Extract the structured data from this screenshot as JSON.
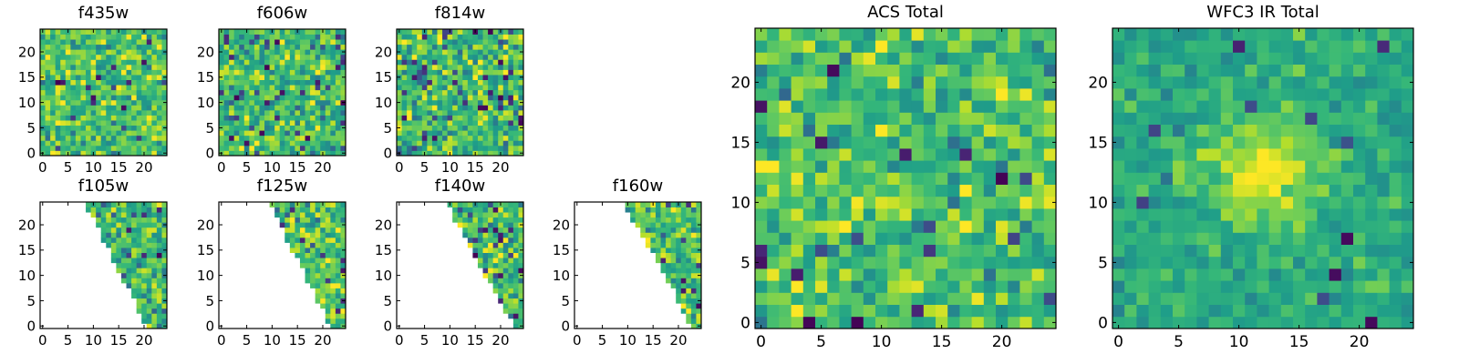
{
  "chart_data": {
    "type": "heatmap",
    "colormap": "viridis",
    "grid_size": [
      25,
      25
    ],
    "xlim": [
      -0.5,
      24.5
    ],
    "ylim": [
      -0.5,
      24.5
    ],
    "origin": "lower",
    "panels": [
      {
        "id": "f435w",
        "title": "f435w",
        "size": "small",
        "xticks": [
          "0",
          "5",
          "10",
          "15",
          "20"
        ],
        "yticks": [
          "0",
          "5",
          "10",
          "15",
          "20"
        ],
        "yticks_values": [
          0,
          5,
          10,
          15,
          20
        ],
        "xticks_values": [
          0,
          5,
          10,
          15,
          20
        ],
        "seed": 11,
        "coverage": "full",
        "mean": 0.72,
        "spread": 0.14,
        "dark_fraction": 0.03
      },
      {
        "id": "f606w",
        "title": "f606w",
        "size": "small",
        "xticks": [
          "0",
          "5",
          "10",
          "15",
          "20"
        ],
        "yticks": [
          "0",
          "5",
          "10",
          "15",
          "20"
        ],
        "yticks_values": [
          0,
          5,
          10,
          15,
          20
        ],
        "xticks_values": [
          0,
          5,
          10,
          15,
          20
        ],
        "seed": 23,
        "coverage": "full",
        "mean": 0.68,
        "spread": 0.15,
        "dark_fraction": 0.04
      },
      {
        "id": "f814w",
        "title": "f814w",
        "size": "small",
        "xticks": [
          "0",
          "5",
          "10",
          "15",
          "20"
        ],
        "yticks": [
          "0",
          "5",
          "10",
          "15",
          "20"
        ],
        "yticks_values": [
          0,
          5,
          10,
          15,
          20
        ],
        "xticks_values": [
          0,
          5,
          10,
          15,
          20
        ],
        "seed": 37,
        "coverage": "full",
        "mean": 0.68,
        "spread": 0.16,
        "dark_fraction": 0.05
      },
      {
        "id": "f105w",
        "title": "f105w",
        "size": "small",
        "xticks": [
          "0",
          "5",
          "10",
          "15",
          "20"
        ],
        "yticks": [
          "0",
          "5",
          "10",
          "15",
          "20"
        ],
        "yticks_values": [
          0,
          5,
          10,
          15,
          20
        ],
        "xticks_values": [
          0,
          5,
          10,
          15,
          20
        ],
        "seed": 41,
        "coverage": "triangle",
        "edge_top_col": 9,
        "edge_bottom_col": 21,
        "mean": 0.66,
        "spread": 0.15,
        "dark_fraction": 0.04
      },
      {
        "id": "f125w",
        "title": "f125w",
        "size": "small",
        "xticks": [
          "0",
          "5",
          "10",
          "15",
          "20"
        ],
        "yticks": [
          "0",
          "5",
          "10",
          "15",
          "20"
        ],
        "yticks_values": [
          0,
          5,
          10,
          15,
          20
        ],
        "xticks_values": [
          0,
          5,
          10,
          15,
          20
        ],
        "seed": 53,
        "coverage": "triangle",
        "edge_top_col": 10,
        "edge_bottom_col": 22,
        "mean": 0.72,
        "spread": 0.15,
        "dark_fraction": 0.04
      },
      {
        "id": "f140w",
        "title": "f140w",
        "size": "small",
        "xticks": [
          "0",
          "5",
          "10",
          "15",
          "20"
        ],
        "yticks": [
          "0",
          "5",
          "10",
          "15",
          "20"
        ],
        "yticks_values": [
          0,
          5,
          10,
          15,
          20
        ],
        "xticks_values": [
          0,
          5,
          10,
          15,
          20
        ],
        "seed": 67,
        "coverage": "triangle",
        "edge_top_col": 10,
        "edge_bottom_col": 23,
        "mean": 0.7,
        "spread": 0.16,
        "dark_fraction": 0.06
      },
      {
        "id": "f160w",
        "title": "f160w",
        "size": "small",
        "xticks": [
          "0",
          "5",
          "10",
          "15",
          "20"
        ],
        "yticks": [
          "0",
          "5",
          "10",
          "15",
          "20"
        ],
        "yticks_values": [
          0,
          5,
          10,
          15,
          20
        ],
        "xticks_values": [
          0,
          5,
          10,
          15,
          20
        ],
        "seed": 71,
        "coverage": "triangle",
        "edge_top_col": 10,
        "edge_bottom_col": 23,
        "mean": 0.7,
        "spread": 0.15,
        "dark_fraction": 0.05
      },
      {
        "id": "acs-total",
        "title": "ACS Total",
        "size": "large",
        "xticks": [
          "0",
          "5",
          "10",
          "15",
          "20"
        ],
        "yticks": [
          "0",
          "5",
          "10",
          "15",
          "20"
        ],
        "yticks_values": [
          0,
          5,
          10,
          15,
          20
        ],
        "xticks_values": [
          0,
          5,
          10,
          15,
          20
        ],
        "seed": 83,
        "coverage": "full",
        "mean": 0.7,
        "spread": 0.13,
        "dark_fraction": 0.025
      },
      {
        "id": "wfc3-ir-total",
        "title": "WFC3 IR Total",
        "size": "large",
        "xticks": [
          "0",
          "5",
          "10",
          "15",
          "20"
        ],
        "yticks": [
          "0",
          "5",
          "10",
          "15",
          "20"
        ],
        "yticks_values": [
          0,
          5,
          10,
          15,
          20
        ],
        "xticks_values": [
          0,
          5,
          10,
          15,
          20
        ],
        "seed": 97,
        "coverage": "full",
        "mean": 0.6,
        "spread": 0.08,
        "dark_fraction": 0.015,
        "blob": {
          "x": 12.5,
          "y": 12.5,
          "sigma": 3.2,
          "amplitude": 0.38
        }
      }
    ]
  }
}
